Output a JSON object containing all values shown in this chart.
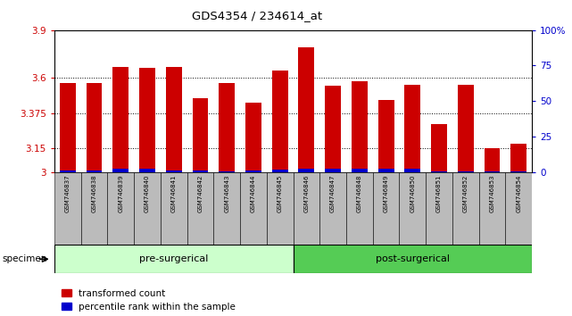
{
  "title": "GDS4354 / 234614_at",
  "samples": [
    "GSM746837",
    "GSM746838",
    "GSM746839",
    "GSM746840",
    "GSM746841",
    "GSM746842",
    "GSM746843",
    "GSM746844",
    "GSM746845",
    "GSM746846",
    "GSM746847",
    "GSM746848",
    "GSM746849",
    "GSM746850",
    "GSM746851",
    "GSM746852",
    "GSM746853",
    "GSM746854"
  ],
  "red_values": [
    3.565,
    3.565,
    3.665,
    3.66,
    3.665,
    3.47,
    3.565,
    3.44,
    3.645,
    3.79,
    3.545,
    3.575,
    3.46,
    3.555,
    3.305,
    3.555,
    3.15,
    3.18
  ],
  "blue_values": [
    0.012,
    0.012,
    0.02,
    0.02,
    0.012,
    0.012,
    0.003,
    0.012,
    0.014,
    0.02,
    0.02,
    0.02,
    0.02,
    0.02,
    0.003,
    0.003,
    0.003,
    0.003
  ],
  "ylim_left": [
    3.0,
    3.9
  ],
  "yticks_left": [
    3.0,
    3.15,
    3.375,
    3.6,
    3.9
  ],
  "ytick_labels_left": [
    "3",
    "3.15",
    "3.375",
    "3.6",
    "3.9"
  ],
  "ylim_right": [
    0,
    100
  ],
  "yticks_right": [
    0,
    25,
    50,
    75,
    100
  ],
  "ytick_labels_right": [
    "0",
    "25",
    "50",
    "75",
    "100%"
  ],
  "pre_n": 9,
  "post_n": 9,
  "group_pre_label": "pre-surgerical",
  "group_post_label": "post-surgerical",
  "legend_red": "transformed count",
  "legend_blue": "percentile rank within the sample",
  "specimen_label": "specimen",
  "bar_width": 0.6,
  "base": 3.0,
  "color_red": "#cc0000",
  "color_blue": "#0000cc",
  "color_pre": "#ccffcc",
  "color_post": "#55cc55",
  "ylabel_left_color": "#cc0000",
  "ylabel_right_color": "#0000cc",
  "tick_area_bg": "#bbbbbb",
  "grid_yticks": [
    3.15,
    3.375,
    3.6
  ]
}
